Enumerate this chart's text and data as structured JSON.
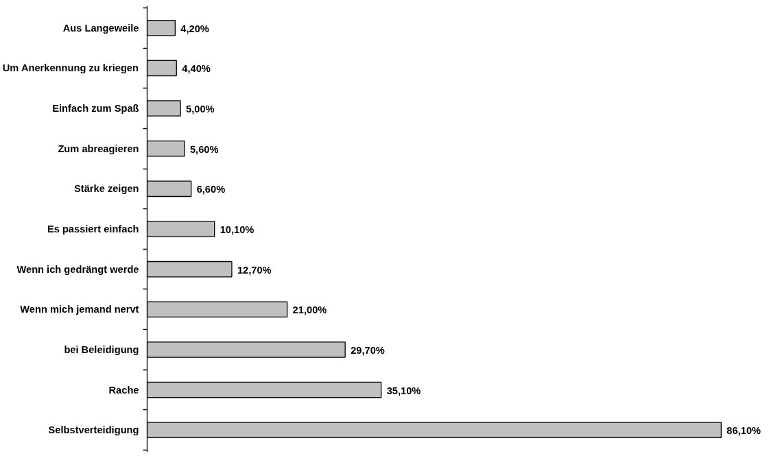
{
  "chart_data": {
    "type": "bar",
    "orientation": "horizontal",
    "color": "#c0c0c0",
    "categories": [
      "Aus Langeweile",
      "Um Anerkennung zu kriegen",
      "Einfach zum Spaß",
      "Zum abreagieren",
      "Stärke zeigen",
      "Es passiert einfach",
      "Wenn ich gedrängt werde",
      "Wenn mich jemand nervt",
      "bei Beleidigung",
      "Rache",
      "Selbstverteidigung"
    ],
    "values": [
      4.2,
      4.4,
      5.0,
      5.6,
      6.6,
      10.1,
      12.7,
      21.0,
      29.7,
      35.1,
      86.1
    ],
    "value_labels": [
      "4,20%",
      "4,40%",
      "5,00%",
      "5,60%",
      "6,60%",
      "10,10%",
      "12,70%",
      "21,00%",
      "29,70%",
      "35,10%",
      "86,10%"
    ]
  }
}
